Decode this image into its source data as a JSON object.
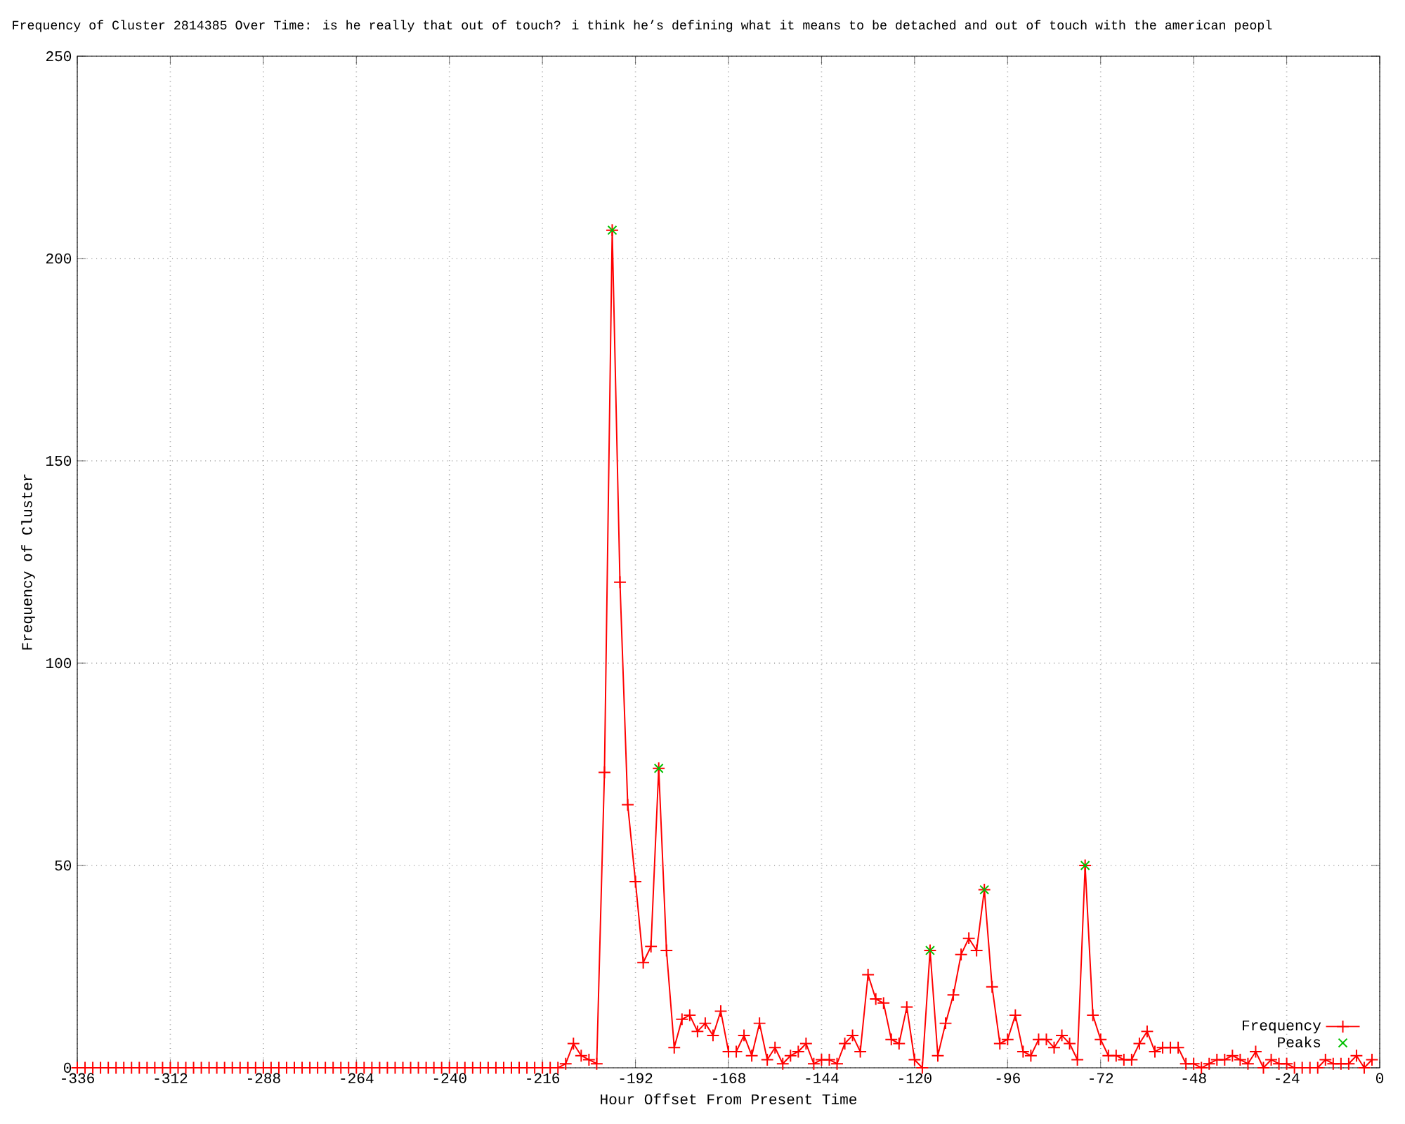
{
  "chart_data": {
    "type": "line",
    "title": "Frequency of Cluster 2814385 Over Time: is he really that out of touch? i think he’s defining what it means to be detached and out of touch with the american peopl",
    "xlabel": "Hour Offset From Present Time",
    "ylabel": "Frequency of Cluster",
    "xlim": [
      -336,
      0
    ],
    "ylim": [
      0,
      250
    ],
    "xticks": [
      -336,
      -312,
      -288,
      -264,
      -240,
      -216,
      -192,
      -168,
      -144,
      -120,
      -96,
      -72,
      -48,
      -24,
      0
    ],
    "yticks": [
      0,
      50,
      100,
      150,
      200,
      250
    ],
    "grid": true,
    "legend": "bottom right",
    "line_style": "solid",
    "series": [
      {
        "name": "Frequency",
        "color": "#ff0000",
        "marker": "cross",
        "x": [
          -336,
          -334,
          -332,
          -330,
          -328,
          -326,
          -324,
          -322,
          -320,
          -318,
          -316,
          -314,
          -312,
          -310,
          -308,
          -306,
          -304,
          -302,
          -300,
          -298,
          -296,
          -294,
          -292,
          -290,
          -288,
          -286,
          -284,
          -282,
          -280,
          -278,
          -276,
          -274,
          -272,
          -270,
          -268,
          -266,
          -264,
          -262,
          -260,
          -258,
          -256,
          -254,
          -252,
          -250,
          -248,
          -246,
          -244,
          -242,
          -240,
          -238,
          -236,
          -234,
          -232,
          -230,
          -228,
          -226,
          -224,
          -222,
          -220,
          -218,
          -216,
          -214,
          -212,
          -210,
          -208,
          -206,
          -204,
          -202,
          -200,
          -198,
          -196,
          -194,
          -192,
          -190,
          -188,
          -186,
          -184,
          -182,
          -180,
          -178,
          -176,
          -174,
          -172,
          -170,
          -168,
          -166,
          -164,
          -162,
          -160,
          -158,
          -156,
          -154,
          -152,
          -150,
          -148,
          -146,
          -144,
          -142,
          -140,
          -138,
          -136,
          -134,
          -132,
          -130,
          -128,
          -126,
          -124,
          -122,
          -120,
          -118,
          -116,
          -114,
          -112,
          -110,
          -108,
          -106,
          -104,
          -102,
          -100,
          -98,
          -96,
          -94,
          -92,
          -90,
          -88,
          -86,
          -84,
          -82,
          -80,
          -78,
          -76,
          -74,
          -72,
          -70,
          -68,
          -66,
          -64,
          -62,
          -60,
          -58,
          -56,
          -54,
          -52,
          -50,
          -48,
          -46,
          -44,
          -42,
          -40,
          -38,
          -36,
          -34,
          -32,
          -30,
          -28,
          -26,
          -24,
          -22,
          -20,
          -18,
          -16,
          -14,
          -12,
          -10,
          -8,
          -6,
          -4,
          -2
        ],
        "values": [
          0,
          0,
          0,
          0,
          0,
          0,
          0,
          0,
          0,
          0,
          0,
          0,
          0,
          0,
          0,
          0,
          0,
          0,
          0,
          0,
          0,
          0,
          0,
          0,
          0,
          0,
          0,
          0,
          0,
          0,
          0,
          0,
          0,
          0,
          0,
          0,
          0,
          0,
          0,
          0,
          0,
          0,
          0,
          0,
          0,
          0,
          0,
          0,
          0,
          0,
          0,
          0,
          0,
          0,
          0,
          0,
          0,
          0,
          0,
          0,
          0,
          0,
          0,
          1,
          6,
          3,
          2,
          1,
          73,
          207,
          120,
          65,
          46,
          26,
          30,
          74,
          29,
          5,
          12,
          13,
          9,
          11,
          8,
          14,
          4,
          4,
          8,
          3,
          11,
          2,
          5,
          1,
          3,
          4,
          6,
          1,
          2,
          2,
          1,
          6,
          8,
          4,
          23,
          17,
          16,
          7,
          6,
          15,
          2,
          0,
          29,
          3,
          11,
          18,
          28,
          32,
          29,
          44,
          20,
          6,
          7,
          13,
          4,
          3,
          7,
          7,
          5,
          8,
          6,
          2,
          50,
          13,
          7,
          3,
          3,
          2,
          2,
          6,
          9,
          4,
          5,
          5,
          5,
          1,
          1,
          0,
          1,
          2,
          2,
          3,
          2,
          1,
          4,
          0,
          2,
          1,
          1,
          0,
          0,
          0,
          0,
          2,
          1,
          1,
          1,
          3,
          0,
          2
        ]
      },
      {
        "name": "Peaks",
        "type": "scatter",
        "color": "#00c000",
        "marker": "x",
        "x": [
          -198,
          -186,
          -116,
          -102,
          -76
        ],
        "values": [
          207,
          74,
          29,
          44,
          50
        ]
      }
    ]
  }
}
